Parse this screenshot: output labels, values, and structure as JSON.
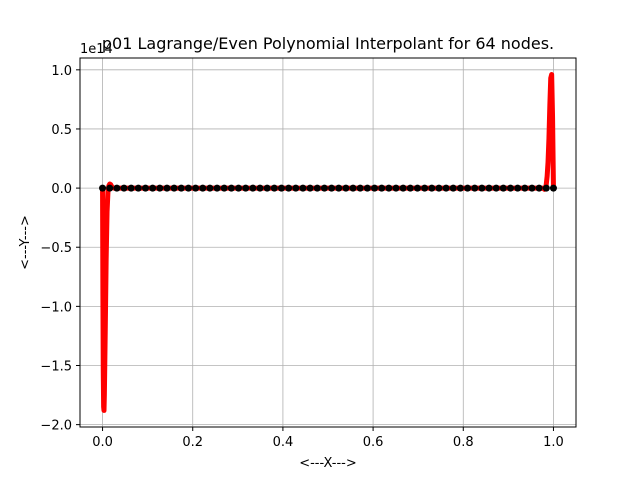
{
  "chart_data": {
    "type": "line",
    "title": "p01 Lagrange/Even Polynomial Interpolant for 64 nodes.",
    "xlabel": "<---X--->",
    "ylabel": "<---Y--->",
    "offset_text": "1e14",
    "xlim": [
      -0.05,
      1.05
    ],
    "ylim": [
      -2.02,
      1.1
    ],
    "y_scale": 100000000000000.0,
    "x_ticks": [
      0.0,
      0.2,
      0.4,
      0.6,
      0.8,
      1.0
    ],
    "x_tick_labels": [
      "0.0",
      "0.2",
      "0.4",
      "0.6",
      "0.8",
      "1.0"
    ],
    "y_ticks": [
      1.0,
      0.5,
      0.0,
      -0.5,
      -1.0,
      -1.5,
      -2.0
    ],
    "y_tick_labels": [
      "1.0",
      "0.5",
      "0.0",
      "−0.5",
      "−1.0",
      "−1.5",
      "−2.0"
    ],
    "grid": true,
    "series": [
      {
        "color": "#ff0000",
        "style": "line",
        "x": [
          0.0,
          0.0008,
          0.0016,
          0.0024,
          0.0032,
          0.004,
          0.006,
          0.008,
          0.01,
          0.012,
          0.014,
          0.016,
          0.018,
          0.02,
          0.022,
          0.025,
          0.03,
          0.04,
          0.1,
          0.5,
          0.9,
          0.96,
          0.97,
          0.975,
          0.978,
          0.98,
          0.982,
          0.984,
          0.986,
          0.988,
          0.99,
          0.992,
          0.994,
          0.996,
          0.998,
          1.0
        ],
        "y": [
          0.0,
          -0.9,
          -1.55,
          -1.85,
          -1.88,
          -1.75,
          -1.2,
          -0.6,
          -0.2,
          -0.03,
          0.02,
          0.035,
          0.03,
          0.015,
          0.005,
          0.0,
          0.0,
          0.0,
          0.0,
          0.0,
          0.0,
          0.0,
          0.0,
          0.0,
          -0.005,
          -0.01,
          -0.005,
          0.03,
          0.1,
          0.22,
          0.42,
          0.7,
          0.93,
          0.96,
          0.6,
          0.0
        ]
      },
      {
        "color": "#000000",
        "style": "points",
        "node_count": 64,
        "x_start": 0.0,
        "x_end": 1.0,
        "y_value": 0.0
      }
    ]
  }
}
